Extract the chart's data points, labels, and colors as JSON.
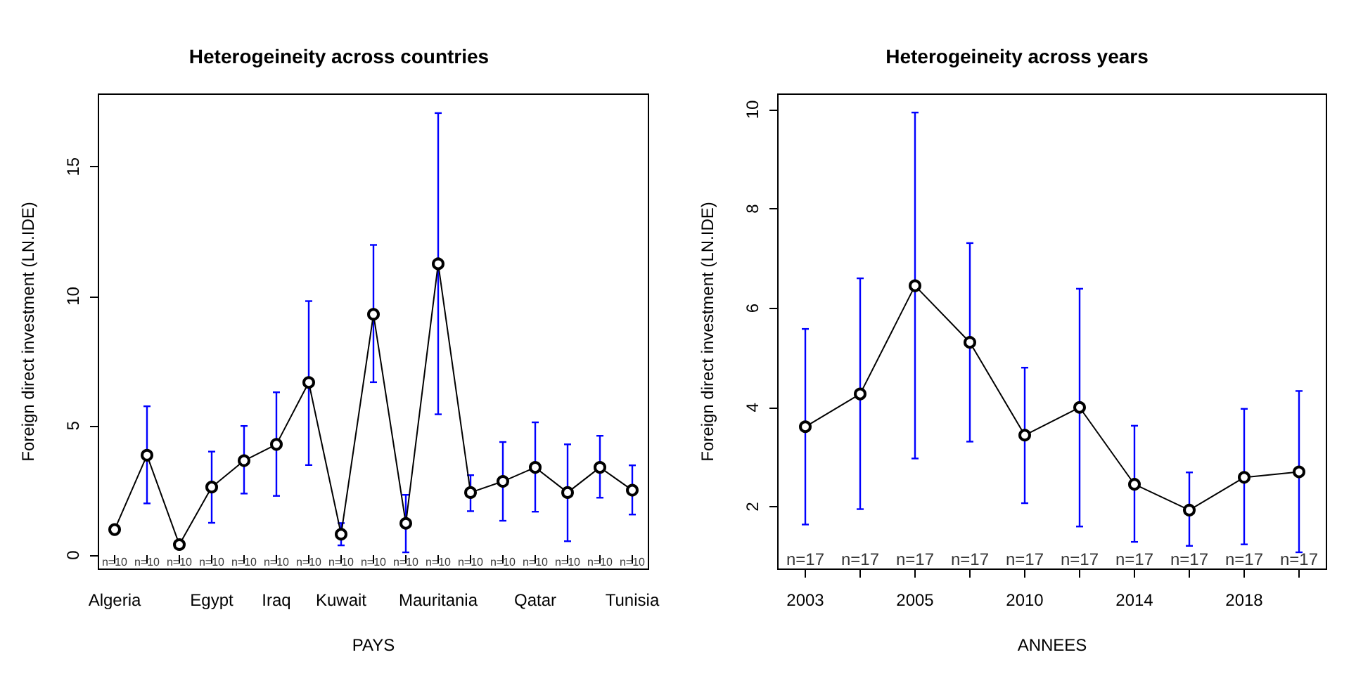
{
  "chart_data": [
    {
      "type": "line",
      "title": "Heterogeineity across countries",
      "xlabel": "PAYS",
      "ylabel": "Foreign direct investment (LN.IDE)",
      "categories": [
        "Algeria",
        null,
        null,
        "Egypt",
        null,
        "Iraq",
        null,
        "Kuwait",
        null,
        null,
        "Mauritania",
        null,
        null,
        "Qatar",
        null,
        null,
        "Tunisia"
      ],
      "series": [
        {
          "color": "#000000",
          "values": [
            0.99,
            3.86,
            0.41,
            2.63,
            3.65,
            4.28,
            6.67,
            0.81,
            9.3,
            1.23,
            11.25,
            2.42,
            2.85,
            3.39,
            2.42,
            3.39,
            2.51
          ],
          "errors": [
            null,
            [
              2.0,
              5.75
            ],
            null,
            [
              1.25,
              4.0
            ],
            [
              2.38,
              4.99
            ],
            [
              2.29,
              6.29
            ],
            [
              3.48,
              9.81
            ],
            [
              0.38,
              1.24
            ],
            [
              6.68,
              11.98
            ],
            [
              0.11,
              2.33
            ],
            [
              5.44,
              17.07
            ],
            [
              1.7,
              3.09
            ],
            [
              1.33,
              4.37
            ],
            [
              1.68,
              5.13
            ],
            [
              0.54,
              4.28
            ],
            [
              2.22,
              4.61
            ],
            [
              1.57,
              3.47
            ]
          ]
        }
      ],
      "annotations": [
        "n=10",
        "n=10",
        "n=10",
        "n=10",
        "n=10",
        "n=10",
        "n=10",
        "n=10",
        "n=10",
        "n=10",
        "n=10",
        "n=10",
        "n=10",
        "n=10",
        "n=10",
        "n=10",
        "n=10"
      ],
      "ylim": [
        -0.54,
        17.8
      ],
      "yticks": [
        0,
        5,
        10,
        15
      ],
      "marker": "circle",
      "grid": false
    },
    {
      "type": "line",
      "title": "Heterogeineity across years",
      "xlabel": "ANNEES",
      "ylabel": "Foreign direct investment (LN.IDE)",
      "categories": [
        "2003",
        null,
        "2005",
        null,
        "2010",
        null,
        "2014",
        null,
        "2018",
        null
      ],
      "series": [
        {
          "color": "#000000",
          "values": [
            3.61,
            4.27,
            6.45,
            5.31,
            3.44,
            4.0,
            2.45,
            1.93,
            2.59,
            2.7
          ],
          "errors": [
            [
              1.64,
              5.58
            ],
            [
              1.95,
              6.6
            ],
            [
              2.97,
              9.94
            ],
            [
              3.31,
              7.31
            ],
            [
              2.07,
              4.8
            ],
            [
              1.6,
              6.39
            ],
            [
              1.29,
              3.63
            ],
            [
              1.21,
              2.69
            ],
            [
              1.24,
              3.97
            ],
            [
              1.08,
              4.33
            ]
          ]
        }
      ],
      "annotations": [
        "n=17",
        "n=17",
        "n=17",
        "n=17",
        "n=17",
        "n=17",
        "n=17",
        "n=17",
        "n=17",
        "n=17"
      ],
      "ylim": [
        0.74,
        10.31
      ],
      "yticks": [
        2,
        4,
        6,
        8,
        10
      ],
      "marker": "circle",
      "grid": false
    }
  ]
}
